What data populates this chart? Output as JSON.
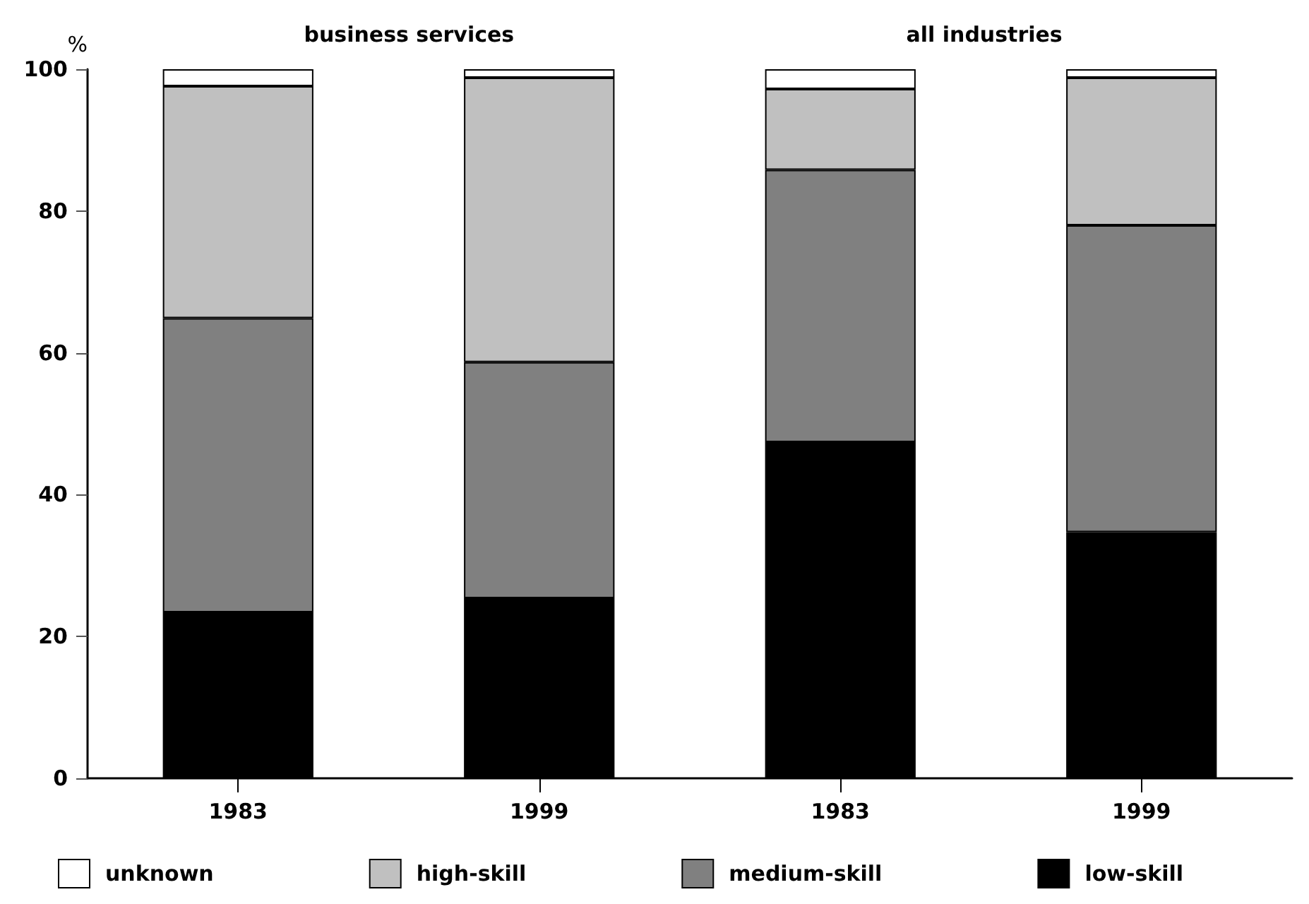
{
  "chart_data": {
    "type": "bar",
    "stacked": true,
    "ylabel": "%",
    "annotations": [
      "business services",
      "all industries"
    ],
    "categories": [
      "1983",
      "1999",
      "1983",
      "1999"
    ],
    "series": [
      {
        "name": "low-skill",
        "color": "#000000",
        "values": [
          23.4,
          25.4,
          47.4,
          34.7
        ]
      },
      {
        "name": "medium-skill",
        "color": "#808080",
        "values": [
          41.5,
          33.3,
          38.4,
          43.3
        ]
      },
      {
        "name": "high-skill",
        "color": "#c0c0c0",
        "values": [
          32.7,
          40.1,
          11.4,
          20.8
        ]
      },
      {
        "name": "unknown",
        "color": "#ffffff",
        "values": [
          2.4,
          1.2,
          2.8,
          1.2
        ]
      }
    ],
    "ylim": [
      0,
      100
    ],
    "yticks": [
      0,
      20,
      40,
      60,
      80,
      100
    ],
    "grid": false,
    "legend": "bottom"
  }
}
